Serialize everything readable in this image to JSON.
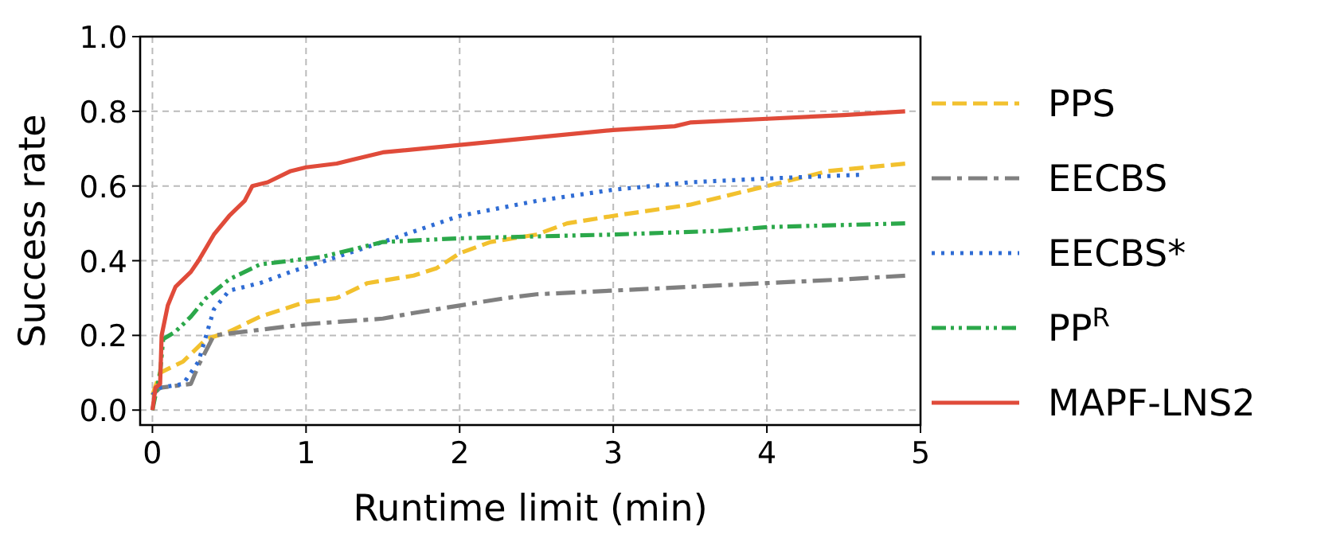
{
  "chart_data": {
    "type": "line",
    "xlabel": "Runtime limit (min)",
    "ylabel": "Success rate",
    "xlim": [
      -0.08,
      5.0
    ],
    "ylim": [
      -0.04,
      1.0
    ],
    "xticks": [
      0,
      1,
      2,
      3,
      4,
      5
    ],
    "yticks": [
      {
        "value": 0,
        "label": "0.0"
      },
      {
        "value": 0.2,
        "label": "0.2"
      },
      {
        "value": 0.4,
        "label": "0.4"
      },
      {
        "value": 0.6,
        "label": "0.6"
      },
      {
        "value": 0.8,
        "label": "0.8"
      },
      {
        "value": 1,
        "label": "1.0"
      }
    ],
    "grid": true,
    "legend": "right",
    "series": [
      {
        "name": "PPS",
        "color": "#f2c12e",
        "line_style": "dashed",
        "x": [
          0,
          0.05,
          0.2,
          0.35,
          0.5,
          0.7,
          1.0,
          1.2,
          1.4,
          1.7,
          1.85,
          2.0,
          2.2,
          2.5,
          2.7,
          3.0,
          3.5,
          3.8,
          4.0,
          4.4,
          4.9
        ],
        "values": [
          0.04,
          0.1,
          0.13,
          0.19,
          0.21,
          0.25,
          0.29,
          0.3,
          0.34,
          0.36,
          0.38,
          0.42,
          0.45,
          0.47,
          0.5,
          0.52,
          0.55,
          0.58,
          0.6,
          0.64,
          0.66
        ]
      },
      {
        "name": "EECBS",
        "color": "#808080",
        "line_style": "dashdot",
        "x": [
          0,
          0.05,
          0.25,
          0.3,
          0.4,
          0.6,
          1.0,
          1.5,
          1.7,
          2.0,
          2.3,
          2.5,
          3.0,
          3.5,
          4.0,
          4.5,
          4.9
        ],
        "values": [
          0.04,
          0.06,
          0.07,
          0.12,
          0.2,
          0.21,
          0.23,
          0.245,
          0.26,
          0.28,
          0.3,
          0.31,
          0.32,
          0.33,
          0.34,
          0.35,
          0.36
        ]
      },
      {
        "name": "EECBS*",
        "color": "#2f6cd4",
        "line_style": "dotted",
        "x": [
          0,
          0.05,
          0.2,
          0.3,
          0.4,
          0.5,
          0.7,
          0.9,
          1.2,
          1.5,
          2.0,
          2.5,
          3.0,
          3.5,
          4.0,
          4.6
        ],
        "values": [
          0.04,
          0.06,
          0.07,
          0.13,
          0.27,
          0.32,
          0.34,
          0.37,
          0.41,
          0.45,
          0.52,
          0.56,
          0.59,
          0.61,
          0.62,
          0.63
        ]
      },
      {
        "name": "PP$^{R}$",
        "color": "#2ba84a",
        "line_style": "dashdotdot",
        "x": [
          0,
          0.05,
          0.07,
          0.15,
          0.25,
          0.35,
          0.5,
          0.7,
          0.9,
          1.1,
          1.3,
          1.5,
          2.0,
          3.0,
          3.7,
          4.0,
          4.9
        ],
        "values": [
          0,
          0.1,
          0.19,
          0.21,
          0.25,
          0.3,
          0.35,
          0.39,
          0.4,
          0.41,
          0.43,
          0.45,
          0.46,
          0.47,
          0.48,
          0.49,
          0.5
        ]
      },
      {
        "name": "MAPF-LNS2",
        "color": "#e04b3a",
        "line_style": "solid",
        "x": [
          0,
          0.02,
          0.05,
          0.06,
          0.1,
          0.15,
          0.25,
          0.3,
          0.4,
          0.5,
          0.6,
          0.65,
          0.75,
          0.9,
          1.0,
          1.2,
          1.3,
          1.5,
          2.0,
          2.5,
          3.0,
          3.4,
          3.5,
          4.0,
          4.5,
          4.9
        ],
        "values": [
          0,
          0.06,
          0.07,
          0.2,
          0.28,
          0.33,
          0.37,
          0.4,
          0.47,
          0.52,
          0.56,
          0.6,
          0.61,
          0.64,
          0.65,
          0.66,
          0.67,
          0.69,
          0.71,
          0.73,
          0.75,
          0.76,
          0.77,
          0.78,
          0.79,
          0.8
        ]
      }
    ]
  }
}
